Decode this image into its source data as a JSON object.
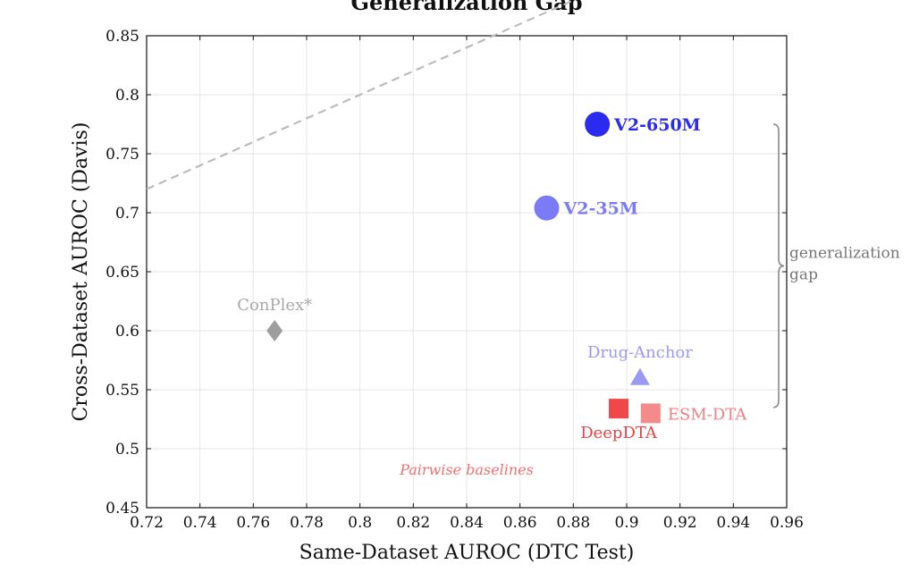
{
  "chart_data": {
    "type": "scatter",
    "title": "Generalization Gap",
    "xlabel": "Same-Dataset AUROC (DTC Test)",
    "ylabel": "Cross-Dataset AUROC (Davis)",
    "xlim": [
      0.72,
      0.96
    ],
    "ylim": [
      0.45,
      0.85
    ],
    "xticks": [
      "0.72",
      "0.74",
      "0.76",
      "0.78",
      "0.8",
      "0.82",
      "0.84",
      "0.86",
      "0.88",
      "0.9",
      "0.92",
      "0.94",
      "0.96"
    ],
    "yticks": [
      "0.45",
      "0.5",
      "0.55",
      "0.6",
      "0.65",
      "0.7",
      "0.75",
      "0.8",
      "0.85"
    ],
    "grid": true,
    "points": [
      {
        "name": "V2-650M",
        "x": 0.889,
        "y": 0.775,
        "marker": "circle",
        "color": "#2b2bf0",
        "label_color": "#2b2bf0",
        "bold": true,
        "label_pos": "right"
      },
      {
        "name": "V2-35M",
        "x": 0.87,
        "y": 0.704,
        "marker": "circle",
        "color": "#7b7bf7",
        "label_color": "#7b7bf7",
        "bold": true,
        "label_pos": "right"
      },
      {
        "name": "ConPlex*",
        "x": 0.768,
        "y": 0.6,
        "marker": "diamond",
        "color": "#9e9e9e",
        "label_color": "#a8a8a8",
        "bold": false,
        "label_pos": "above"
      },
      {
        "name": "Drug-Anchor",
        "x": 0.905,
        "y": 0.56,
        "marker": "triangle",
        "color": "#9a9af5",
        "label_color": "#9a9af5",
        "bold": false,
        "label_pos": "above"
      },
      {
        "name": "DeepDTA",
        "x": 0.897,
        "y": 0.534,
        "marker": "square",
        "color": "#f04848",
        "label_color": "#e84444",
        "bold": false,
        "label_pos": "below"
      },
      {
        "name": "ESM-DTA",
        "x": 0.909,
        "y": 0.53,
        "marker": "square",
        "color": "#f48a8a",
        "label_color": "#f08080",
        "bold": false,
        "label_pos": "right"
      }
    ],
    "reference_line": {
      "style": "dashed",
      "color": "#bbbbbb",
      "points": [
        [
          0.72,
          0.72
        ],
        [
          0.86,
          0.86
        ]
      ]
    },
    "annotations": [
      {
        "text": "Pairwise baselines",
        "x": 0.84,
        "y": 0.478,
        "color": "#f07070",
        "italic": true
      },
      {
        "text": "generalization gap",
        "lines": [
          "generalization",
          "gap"
        ],
        "color": "#777777",
        "brace_y": [
          0.775,
          0.535
        ],
        "brace_x": 0.957
      }
    ]
  }
}
